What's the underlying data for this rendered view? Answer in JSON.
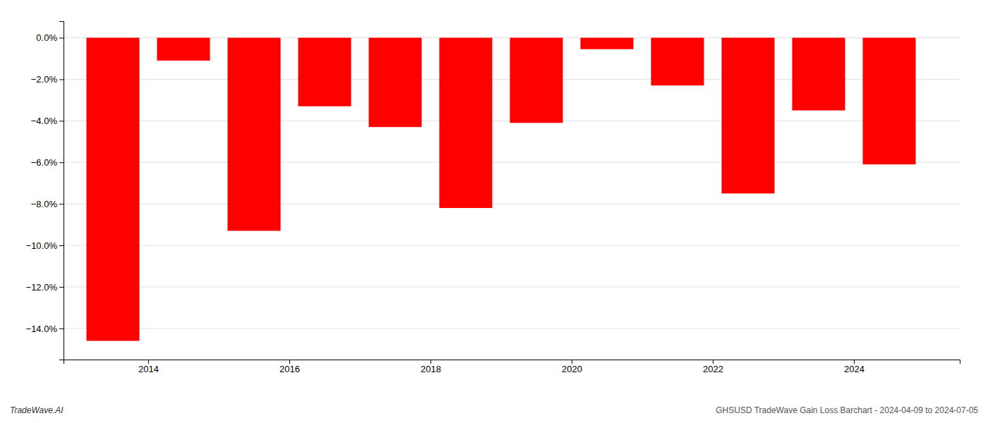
{
  "chart_data": {
    "type": "bar",
    "x": [
      2013.5,
      2014.5,
      2015.5,
      2016.5,
      2017.5,
      2018.5,
      2019.5,
      2020.5,
      2021.5,
      2022.5,
      2023.5,
      2024.5
    ],
    "values": [
      -14.6,
      -1.1,
      -9.3,
      -3.3,
      -4.3,
      -8.2,
      -4.1,
      -0.55,
      -2.3,
      -7.5,
      -3.5,
      -6.1
    ],
    "color": "#ff0000",
    "xlim": [
      2012.8,
      2025.5
    ],
    "xticks": [
      2014,
      2016,
      2018,
      2020,
      2022,
      2024
    ],
    "ylim": [
      -15.5,
      0.8
    ],
    "yticks": [
      {
        "value": 0.0,
        "label": "0.0%"
      },
      {
        "value": -2.0,
        "label": "−2.0%"
      },
      {
        "value": -4.0,
        "label": "−4.0%"
      },
      {
        "value": -6.0,
        "label": "−6.0%"
      },
      {
        "value": -8.0,
        "label": "−8.0%"
      },
      {
        "value": -10.0,
        "label": "−10.0%"
      },
      {
        "value": -12.0,
        "label": "−12.0%"
      },
      {
        "value": -14.0,
        "label": "−14.0%"
      }
    ],
    "grid": true,
    "annotations": [
      "TradeWave.AI",
      "GHSUSD TradeWave Gain Loss Barchart - 2024-04-09 to 2024-07-05"
    ]
  }
}
